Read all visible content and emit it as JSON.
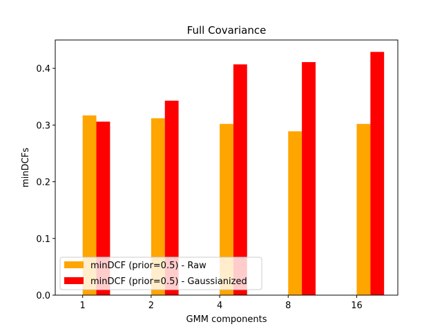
{
  "chart_data": {
    "type": "bar",
    "title": "Full Covariance",
    "xlabel": "GMM components",
    "ylabel": "minDCFs",
    "categories": [
      "1",
      "2",
      "4",
      "8",
      "16"
    ],
    "series": [
      {
        "name": "minDCF (prior=0.5) - Raw",
        "color": "#FFA500",
        "values": [
          0.317,
          0.312,
          0.302,
          0.289,
          0.302
        ]
      },
      {
        "name": "minDCF (prior=0.5) - Gaussianized",
        "color": "#FF0000",
        "values": [
          0.306,
          0.343,
          0.407,
          0.411,
          0.429
        ]
      }
    ],
    "ylim": [
      0,
      0.45
    ],
    "yticks": [
      0.0,
      0.1,
      0.2,
      0.3,
      0.4
    ],
    "ytick_labels": [
      "0.0",
      "0.1",
      "0.2",
      "0.3",
      "0.4"
    ],
    "grid": false,
    "legend_position": "lower-left"
  }
}
